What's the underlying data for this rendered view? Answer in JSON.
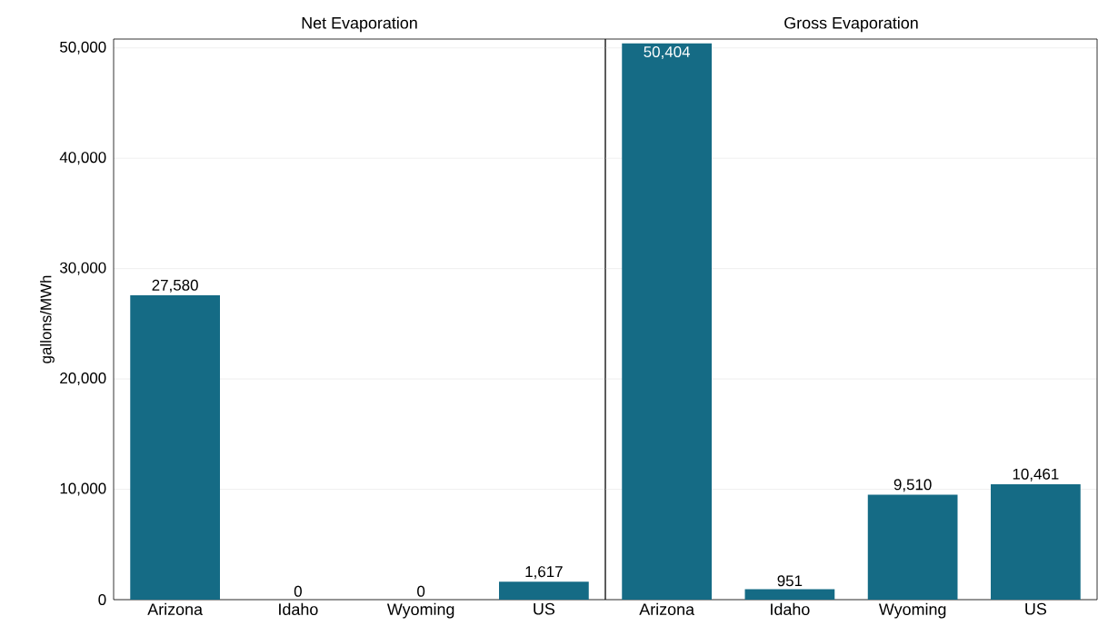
{
  "chart_data": [
    {
      "type": "bar",
      "title": "Net Evaporation",
      "ylabel": "gallons/MWh",
      "categories": [
        "Arizona",
        "Idaho",
        "Wyoming",
        "US"
      ],
      "values": [
        27580,
        0,
        0,
        1617
      ],
      "value_labels": [
        "27,580",
        "0",
        "0",
        "1,617"
      ],
      "color": "#156b85",
      "ylim": [
        0,
        50800
      ],
      "yticks": [
        {
          "value": 0,
          "label": "0"
        },
        {
          "value": 10000,
          "label": "10,000"
        },
        {
          "value": 20000,
          "label": "20,000"
        },
        {
          "value": 30000,
          "label": "30,000"
        },
        {
          "value": 40000,
          "label": "40,000"
        },
        {
          "value": 50000,
          "label": "50,000"
        }
      ],
      "grid": "y"
    },
    {
      "type": "bar",
      "title": "Gross Evaporation",
      "categories": [
        "Arizona",
        "Idaho",
        "Wyoming",
        "US"
      ],
      "values": [
        50404,
        951,
        9510,
        10461
      ],
      "value_labels": [
        "50,404",
        "951",
        "9,510",
        "10,461"
      ],
      "color": "#156b85",
      "ylim": [
        0,
        50800
      ],
      "yticks": [
        {
          "value": 0,
          "label": null
        },
        {
          "value": 10000,
          "label": null
        },
        {
          "value": 20000,
          "label": null
        },
        {
          "value": 30000,
          "label": null
        },
        {
          "value": 40000,
          "label": null
        },
        {
          "value": 50000,
          "label": null
        }
      ],
      "grid": "y",
      "tick_labels": "x"
    }
  ]
}
